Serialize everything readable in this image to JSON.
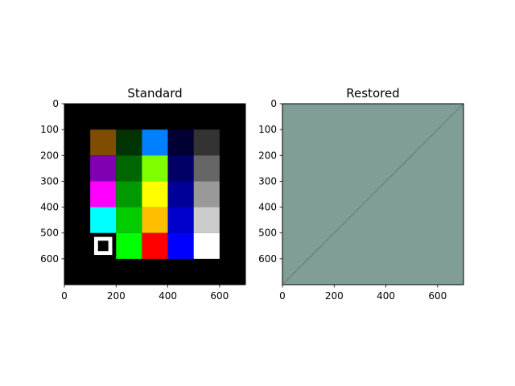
{
  "chart_data": [
    {
      "type": "heatmap",
      "title": "Standard",
      "xlabel": "",
      "ylabel": "",
      "xlim": [
        0,
        700
      ],
      "ylim": [
        700,
        0
      ],
      "x_ticks": [
        "0",
        "200",
        "400",
        "600"
      ],
      "y_ticks": [
        "0",
        "100",
        "200",
        "300",
        "400",
        "500",
        "600"
      ],
      "background": "#000000",
      "cells": [
        {
          "x": 100,
          "y": 100,
          "w": 100,
          "h": 100,
          "color": "#7f4c00"
        },
        {
          "x": 200,
          "y": 100,
          "w": 100,
          "h": 100,
          "color": "#003300"
        },
        {
          "x": 300,
          "y": 100,
          "w": 100,
          "h": 100,
          "color": "#007fff"
        },
        {
          "x": 400,
          "y": 100,
          "w": 100,
          "h": 100,
          "color": "#000033"
        },
        {
          "x": 500,
          "y": 100,
          "w": 100,
          "h": 100,
          "color": "#333333"
        },
        {
          "x": 100,
          "y": 200,
          "w": 100,
          "h": 100,
          "color": "#7f00b2"
        },
        {
          "x": 200,
          "y": 200,
          "w": 100,
          "h": 100,
          "color": "#006600"
        },
        {
          "x": 300,
          "y": 200,
          "w": 100,
          "h": 100,
          "color": "#7fff00"
        },
        {
          "x": 400,
          "y": 200,
          "w": 100,
          "h": 100,
          "color": "#000066"
        },
        {
          "x": 500,
          "y": 200,
          "w": 100,
          "h": 100,
          "color": "#666666"
        },
        {
          "x": 100,
          "y": 300,
          "w": 100,
          "h": 100,
          "color": "#ff00ff"
        },
        {
          "x": 200,
          "y": 300,
          "w": 100,
          "h": 100,
          "color": "#009900"
        },
        {
          "x": 300,
          "y": 300,
          "w": 100,
          "h": 100,
          "color": "#ffff00"
        },
        {
          "x": 400,
          "y": 300,
          "w": 100,
          "h": 100,
          "color": "#000099"
        },
        {
          "x": 500,
          "y": 300,
          "w": 100,
          "h": 100,
          "color": "#999999"
        },
        {
          "x": 100,
          "y": 400,
          "w": 100,
          "h": 100,
          "color": "#00ffff"
        },
        {
          "x": 200,
          "y": 400,
          "w": 100,
          "h": 100,
          "color": "#00cc00"
        },
        {
          "x": 300,
          "y": 400,
          "w": 100,
          "h": 100,
          "color": "#ffbf00"
        },
        {
          "x": 400,
          "y": 400,
          "w": 100,
          "h": 100,
          "color": "#0000cc"
        },
        {
          "x": 500,
          "y": 400,
          "w": 100,
          "h": 100,
          "color": "#cccccc"
        },
        {
          "x": 200,
          "y": 500,
          "w": 100,
          "h": 100,
          "color": "#00ff00"
        },
        {
          "x": 300,
          "y": 500,
          "w": 100,
          "h": 100,
          "color": "#ff0000"
        },
        {
          "x": 400,
          "y": 500,
          "w": 100,
          "h": 100,
          "color": "#0000ff"
        },
        {
          "x": 500,
          "y": 500,
          "w": 100,
          "h": 100,
          "color": "#ffffff"
        },
        {
          "x": 115,
          "y": 515,
          "w": 70,
          "h": 70,
          "color": "#ffffff"
        },
        {
          "x": 130,
          "y": 530,
          "w": 40,
          "h": 40,
          "color": "#000000"
        }
      ]
    },
    {
      "type": "heatmap",
      "title": "Restored",
      "xlabel": "",
      "ylabel": "",
      "xlim": [
        0,
        700
      ],
      "ylim": [
        700,
        0
      ],
      "x_ticks": [
        "0",
        "200",
        "400",
        "600"
      ],
      "y_ticks": [
        "0",
        "100",
        "200",
        "300",
        "400",
        "500",
        "600"
      ],
      "background": "#809d97",
      "diagonal_line": {
        "x": [
          0,
          700
        ],
        "y": [
          700,
          0
        ],
        "color": "#5e716d"
      }
    }
  ]
}
